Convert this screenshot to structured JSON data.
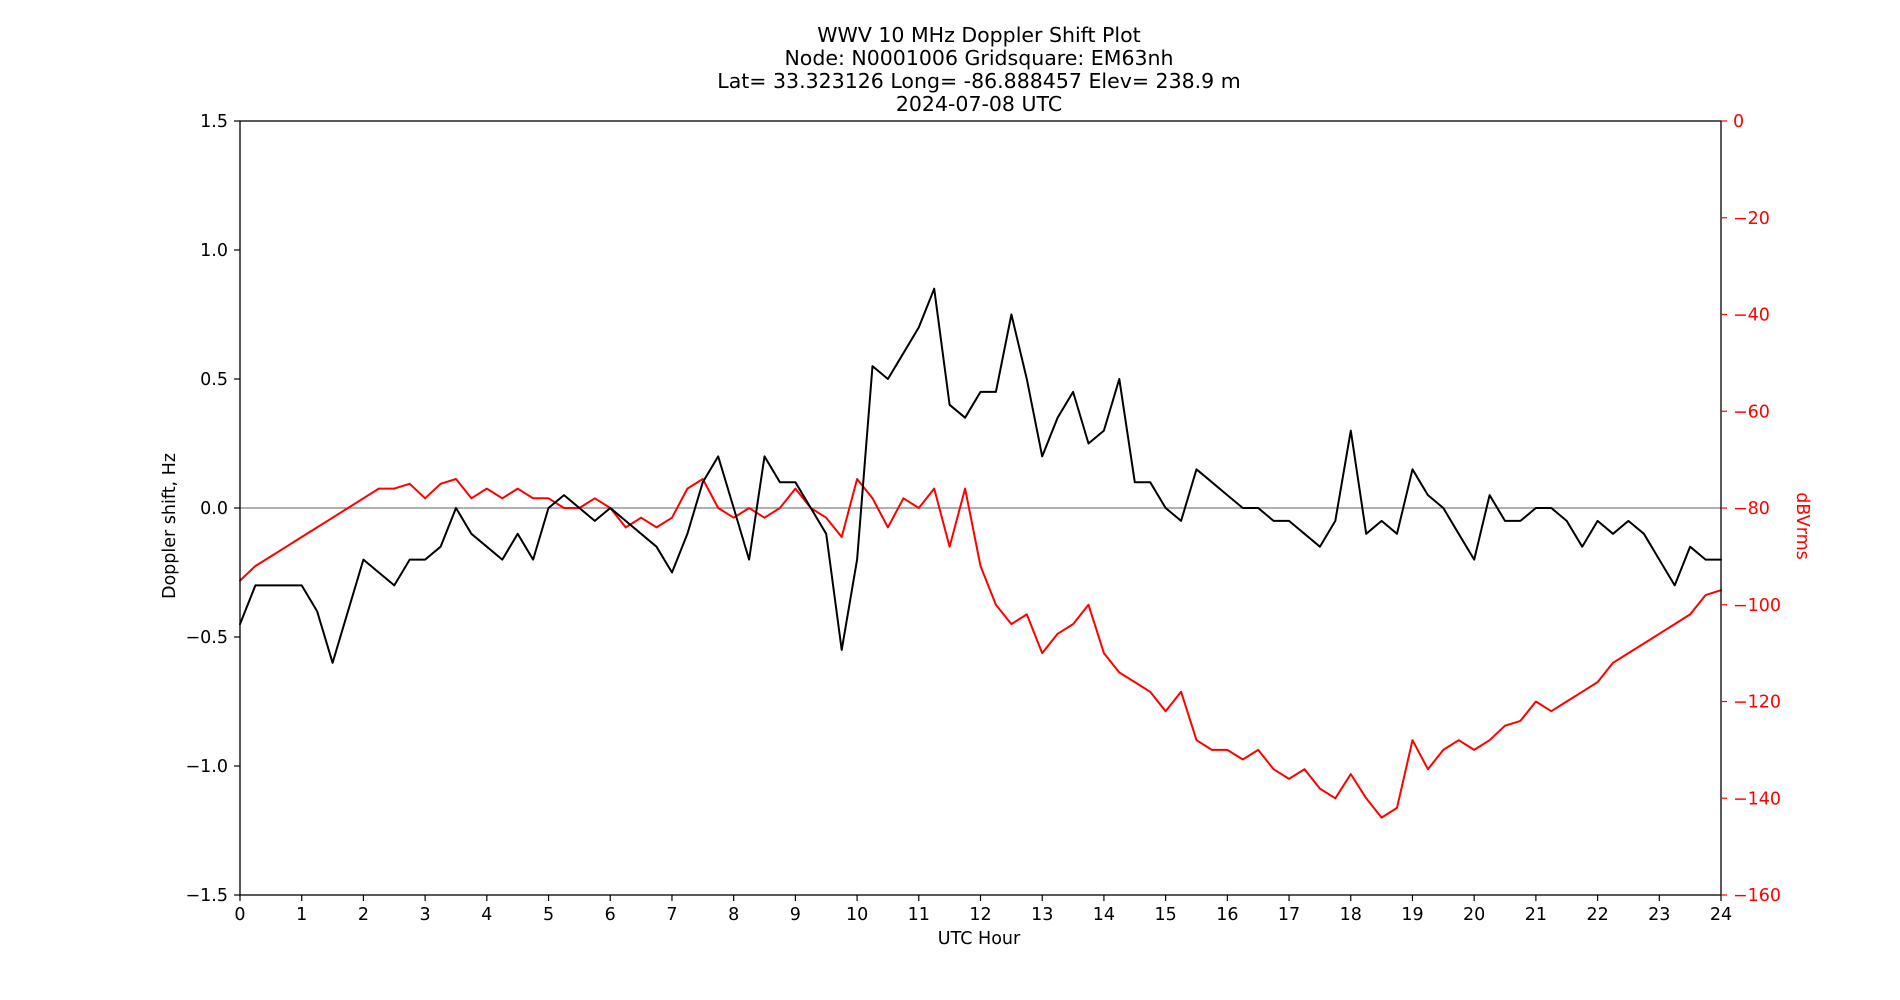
{
  "chart_data": {
    "type": "line",
    "title_lines": [
      "WWV 10 MHz Doppler Shift Plot",
      "Node:  N0001006     Gridsquare:  EM63nh",
      "Lat= 33.323126    Long= -86.888457    Elev= 238.9 m",
      "2024-07-08  UTC"
    ],
    "xlabel": "UTC Hour",
    "ylabel": "Doppler shift, Hz",
    "y2label": "dBVrms",
    "xlim": [
      0,
      24
    ],
    "ylim": [
      -1.5,
      1.5
    ],
    "y2lim": [
      -160,
      0
    ],
    "x_ticks": [
      0,
      1,
      2,
      3,
      4,
      5,
      6,
      7,
      8,
      9,
      10,
      11,
      12,
      13,
      14,
      15,
      16,
      17,
      18,
      19,
      20,
      21,
      22,
      23,
      24
    ],
    "y_ticks": [
      "1.5",
      "1.0",
      "0.5",
      "0.0",
      "−0.5",
      "−1.0",
      "−1.5"
    ],
    "y2_ticks": [
      "0",
      "−20",
      "−40",
      "−60",
      "−80",
      "−100",
      "−120",
      "−140",
      "−160"
    ],
    "zero_line": 0,
    "grid": false,
    "colors": {
      "doppler": "#000000",
      "power": "#ff0000",
      "zero_line": "#808080",
      "axis": "#000000"
    },
    "series": [
      {
        "axis": "left",
        "x": [
          0,
          0.25,
          0.5,
          0.75,
          1,
          1.25,
          1.5,
          1.75,
          2,
          2.25,
          2.5,
          2.75,
          3,
          3.25,
          3.5,
          3.75,
          4,
          4.25,
          4.5,
          4.75,
          5,
          5.25,
          5.5,
          5.75,
          6,
          6.25,
          6.5,
          6.75,
          7,
          7.25,
          7.5,
          7.75,
          8,
          8.25,
          8.5,
          8.75,
          9,
          9.25,
          9.5,
          9.75,
          10,
          10.25,
          10.5,
          10.75,
          11,
          11.25,
          11.5,
          11.75,
          12,
          12.25,
          12.5,
          12.75,
          13,
          13.25,
          13.5,
          13.75,
          14,
          14.25,
          14.5,
          14.75,
          15,
          15.25,
          15.5,
          15.75,
          16,
          16.25,
          16.5,
          16.75,
          17,
          17.25,
          17.5,
          17.75,
          18,
          18.25,
          18.5,
          18.75,
          19,
          19.25,
          19.5,
          19.75,
          20,
          20.25,
          20.5,
          20.75,
          21,
          21.25,
          21.5,
          21.75,
          22,
          22.25,
          22.5,
          22.75,
          23,
          23.25,
          23.5,
          23.75,
          24
        ],
        "values": [
          -0.45,
          -0.3,
          -0.3,
          -0.3,
          -0.3,
          -0.4,
          -0.6,
          -0.4,
          -0.2,
          -0.25,
          -0.3,
          -0.2,
          -0.2,
          -0.15,
          0.0,
          -0.1,
          -0.15,
          -0.2,
          -0.1,
          -0.2,
          0.0,
          0.05,
          0.0,
          -0.05,
          0.0,
          -0.05,
          -0.1,
          -0.15,
          -0.25,
          -0.1,
          0.1,
          0.2,
          0.0,
          -0.2,
          0.2,
          0.1,
          0.1,
          0.0,
          -0.1,
          -0.55,
          -0.2,
          0.55,
          0.5,
          0.6,
          0.7,
          0.85,
          0.4,
          0.35,
          0.45,
          0.45,
          0.75,
          0.5,
          0.2,
          0.35,
          0.45,
          0.25,
          0.3,
          0.5,
          0.1,
          0.1,
          0.0,
          -0.05,
          0.15,
          0.1,
          0.05,
          0.0,
          0.0,
          -0.05,
          -0.05,
          -0.1,
          -0.15,
          -0.05,
          0.3,
          -0.1,
          -0.05,
          -0.1,
          0.15,
          0.05,
          0.0,
          -0.1,
          -0.2,
          0.05,
          -0.05,
          -0.05,
          0.0,
          0.0,
          -0.05,
          -0.15,
          -0.05,
          -0.1,
          -0.05,
          -0.1,
          -0.2,
          -0.3,
          -0.15,
          -0.2,
          -0.2
        ]
      },
      {
        "axis": "right",
        "x": [
          0,
          0.25,
          0.5,
          0.75,
          1,
          1.25,
          1.5,
          1.75,
          2,
          2.25,
          2.5,
          2.75,
          3,
          3.25,
          3.5,
          3.75,
          4,
          4.25,
          4.5,
          4.75,
          5,
          5.25,
          5.5,
          5.75,
          6,
          6.25,
          6.5,
          6.75,
          7,
          7.25,
          7.5,
          7.75,
          8,
          8.25,
          8.5,
          8.75,
          9,
          9.25,
          9.5,
          9.75,
          10,
          10.25,
          10.5,
          10.75,
          11,
          11.25,
          11.5,
          11.75,
          12,
          12.25,
          12.5,
          12.75,
          13,
          13.25,
          13.5,
          13.75,
          14,
          14.25,
          14.5,
          14.75,
          15,
          15.25,
          15.5,
          15.75,
          16,
          16.25,
          16.5,
          16.75,
          17,
          17.25,
          17.5,
          17.75,
          18,
          18.25,
          18.5,
          18.75,
          19,
          19.25,
          19.5,
          19.75,
          20,
          20.25,
          20.5,
          20.75,
          21,
          21.25,
          21.5,
          21.75,
          22,
          22.25,
          22.5,
          22.75,
          23,
          23.25,
          23.5,
          23.75,
          24
        ],
        "values": [
          -95,
          -92,
          -90,
          -88,
          -86,
          -84,
          -82,
          -80,
          -78,
          -76,
          -76,
          -75,
          -78,
          -75,
          -74,
          -78,
          -76,
          -78,
          -76,
          -78,
          -78,
          -80,
          -80,
          -78,
          -80,
          -84,
          -82,
          -84,
          -82,
          -76,
          -74,
          -80,
          -82,
          -80,
          -82,
          -80,
          -76,
          -80,
          -82,
          -86,
          -74,
          -78,
          -84,
          -78,
          -80,
          -76,
          -88,
          -76,
          -92,
          -100,
          -104,
          -102,
          -110,
          -106,
          -104,
          -100,
          -110,
          -114,
          -116,
          -118,
          -122,
          -118,
          -128,
          -130,
          -130,
          -132,
          -130,
          -134,
          -136,
          -134,
          -138,
          -140,
          -135,
          -140,
          -144,
          -142,
          -128,
          -134,
          -130,
          -128,
          -130,
          -128,
          -125,
          -124,
          -120,
          -122,
          -120,
          -118,
          -116,
          -112,
          -110,
          -108,
          -106,
          -104,
          -102,
          -98,
          -97
        ]
      }
    ]
  }
}
